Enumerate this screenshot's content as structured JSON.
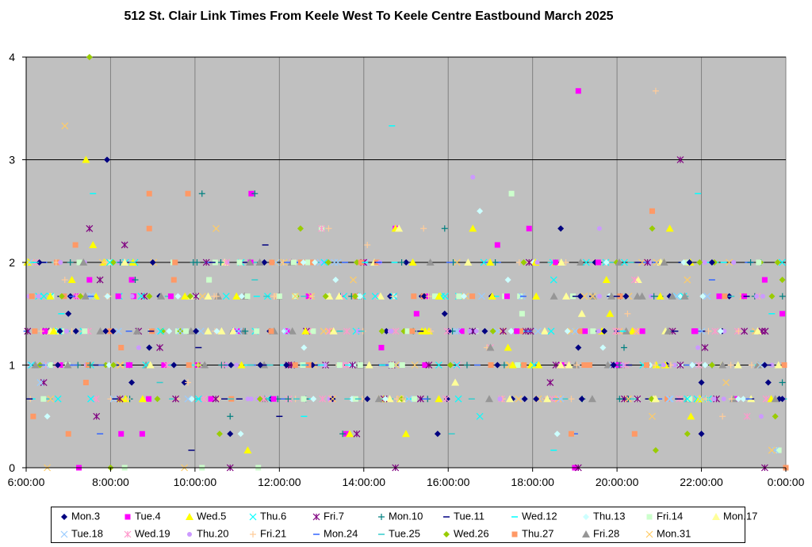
{
  "chart_data": {
    "type": "scatter",
    "title": "512 St. Clair Link Times From Keele West To Keele Centre Eastbound March 2025",
    "xlabel": "",
    "ylabel": "",
    "xlim": [
      "6:00:00",
      "0:00:00"
    ],
    "ylim": [
      0,
      4
    ],
    "x_ticks": [
      "6:00:00",
      "8:00:00",
      "10:00:00",
      "12:00:00",
      "14:00:00",
      "16:00:00",
      "18:00:00",
      "20:00:00",
      "22:00:00",
      "0:00:00"
    ],
    "y_ticks": [
      "0",
      "1",
      "2",
      "3",
      "4"
    ],
    "grid": true,
    "plot_background": "#c0c0c0",
    "legend_position": "bottom",
    "series": [
      {
        "name": "Mon.3",
        "marker": "diamond",
        "color": "#000080",
        "points": [
          [
            "7:55",
            3.0
          ],
          [
            "18:40",
            2.33
          ],
          [
            "9:00",
            2.0
          ],
          [
            "22:15",
            2.0
          ],
          [
            "7:00",
            1.5
          ],
          [
            "15:55",
            1.5
          ],
          [
            "8:55",
            1.17
          ],
          [
            "19:05",
            1.17
          ],
          [
            "6:45",
            1.0
          ],
          [
            "9:30",
            1.0
          ],
          [
            "12:10",
            1.0
          ],
          [
            "17:10",
            1.0
          ],
          [
            "19:55",
            1.0
          ],
          [
            "23:30",
            1.0
          ],
          [
            "8:30",
            0.83
          ],
          [
            "9:45",
            0.83
          ],
          [
            "22:00",
            0.83
          ],
          [
            "23:35",
            0.83
          ],
          [
            "14:05",
            0.67
          ],
          [
            "19:10",
            0.67
          ],
          [
            "23:55",
            0.67
          ],
          [
            "10:50",
            0.33
          ],
          [
            "15:45",
            0.33
          ],
          [
            "22:00",
            0.33
          ]
        ]
      },
      {
        "name": "Tue.4",
        "marker": "square",
        "color": "#ff00ff",
        "points": [
          [
            "19:05",
            3.67
          ],
          [
            "11:20",
            2.67
          ],
          [
            "14:45",
            2.33
          ],
          [
            "17:55",
            2.33
          ],
          [
            "17:10",
            2.17
          ],
          [
            "7:30",
            1.83
          ],
          [
            "8:30",
            1.83
          ],
          [
            "23:30",
            1.83
          ],
          [
            "15:15",
            1.5
          ],
          [
            "23:55",
            1.5
          ],
          [
            "14:25",
            1.17
          ],
          [
            "8:15",
            0.33
          ],
          [
            "8:45",
            0.33
          ],
          [
            "13:35",
            0.33
          ],
          [
            "7:15",
            0.0
          ],
          [
            "19:00",
            0.0
          ]
        ]
      },
      {
        "name": "Wed.5",
        "marker": "triangle",
        "color": "#ffff00",
        "points": [
          [
            "7:25",
            3.0
          ],
          [
            "7:35",
            2.17
          ],
          [
            "14:45",
            2.33
          ],
          [
            "16:35",
            2.33
          ],
          [
            "21:15",
            2.33
          ],
          [
            "7:05",
            1.83
          ],
          [
            "19:45",
            1.83
          ],
          [
            "19:50",
            1.5
          ],
          [
            "17:25",
            1.17
          ],
          [
            "13:40",
            0.33
          ],
          [
            "15:00",
            0.33
          ],
          [
            "21:45",
            0.5
          ],
          [
            "11:15",
            0.17
          ]
        ]
      },
      {
        "name": "Thu.6",
        "marker": "x",
        "color": "#00ffff",
        "points": [
          [
            "18:30",
            1.83
          ],
          [
            "16:45",
            0.5
          ],
          [
            "10:05",
            0.67
          ],
          [
            "21:40",
            0.67
          ]
        ]
      },
      {
        "name": "Fri.7",
        "marker": "asterisk",
        "color": "#800080",
        "points": [
          [
            "21:30",
            3.0
          ],
          [
            "7:30",
            2.33
          ],
          [
            "8:20",
            2.17
          ],
          [
            "7:45",
            1.83
          ],
          [
            "9:10",
            1.17
          ],
          [
            "22:05",
            1.17
          ],
          [
            "6:25",
            0.83
          ],
          [
            "18:25",
            0.83
          ],
          [
            "7:40",
            0.5
          ],
          [
            "13:50",
            0.33
          ],
          [
            "10:50",
            0.0
          ],
          [
            "14:45",
            0.0
          ],
          [
            "19:05",
            0.0
          ],
          [
            "23:30",
            0.0
          ]
        ]
      },
      {
        "name": "Mon.10",
        "marker": "plus",
        "color": "#008080",
        "points": [
          [
            "10:10",
            2.67
          ],
          [
            "11:25",
            2.67
          ],
          [
            "15:55",
            2.33
          ],
          [
            "8:35",
            1.83
          ],
          [
            "20:10",
            1.17
          ],
          [
            "10:50",
            0.5
          ],
          [
            "23:55",
            0.83
          ],
          [
            "13:30",
            0.33
          ]
        ]
      },
      {
        "name": "Tue.11",
        "marker": "dash",
        "color": "#000080",
        "points": [
          [
            "11:40",
            2.17
          ],
          [
            "10:05",
            1.17
          ],
          [
            "12:00",
            0.5
          ],
          [
            "9:55",
            0.17
          ]
        ]
      },
      {
        "name": "Wed.12",
        "marker": "dash",
        "color": "#00ffff",
        "points": [
          [
            "14:40",
            3.33
          ],
          [
            "7:35",
            2.67
          ],
          [
            "21:55",
            2.67
          ],
          [
            "6:50",
            1.5
          ],
          [
            "23:40",
            1.5
          ],
          [
            "12:35",
            0.5
          ],
          [
            "18:30",
            0.17
          ]
        ]
      },
      {
        "name": "Thu.13",
        "marker": "diamond",
        "color": "#ccffff",
        "points": [
          [
            "16:45",
            2.5
          ],
          [
            "13:20",
            1.83
          ],
          [
            "17:25",
            1.83
          ],
          [
            "12:35",
            1.17
          ],
          [
            "19:40",
            1.17
          ],
          [
            "11:05",
            0.33
          ],
          [
            "18:35",
            0.33
          ],
          [
            "6:30",
            0.5
          ]
        ]
      },
      {
        "name": "Fri.14",
        "marker": "square",
        "color": "#ccffcc",
        "points": [
          [
            "17:30",
            2.67
          ],
          [
            "13:00",
            2.33
          ],
          [
            "10:20",
            1.83
          ],
          [
            "12:00",
            1.67
          ],
          [
            "17:45",
            1.5
          ],
          [
            "8:20",
            0.0
          ],
          [
            "10:10",
            0.0
          ],
          [
            "11:30",
            0.0
          ],
          [
            "23:50",
            0.17
          ]
        ]
      },
      {
        "name": "Mon.17",
        "marker": "triangle",
        "color": "#ffff99",
        "points": [
          [
            "14:50",
            2.33
          ],
          [
            "20:30",
            1.83
          ],
          [
            "13:25",
            1.67
          ],
          [
            "19:10",
            1.5
          ],
          [
            "23:20",
            1.33
          ],
          [
            "18:40",
            1.0
          ],
          [
            "16:10",
            0.83
          ],
          [
            "20:55",
            0.67
          ]
        ]
      },
      {
        "name": "Tue.18",
        "marker": "x",
        "color": "#99ccff",
        "points": [
          [
            "18:40",
            0.67
          ],
          [
            "12:10",
            1.33
          ],
          [
            "23:45",
            0.17
          ],
          [
            "6:20",
            0.83
          ]
        ]
      },
      {
        "name": "Wed.19",
        "marker": "asterisk",
        "color": "#ff99cc",
        "points": [
          [
            "13:00",
            2.33
          ],
          [
            "20:25",
            1.83
          ],
          [
            "17:00",
            1.17
          ],
          [
            "23:05",
            0.5
          ]
        ]
      },
      {
        "name": "Thu.20",
        "marker": "circle",
        "color": "#cc99ff",
        "points": [
          [
            "16:35",
            2.83
          ],
          [
            "19:35",
            2.33
          ],
          [
            "8:40",
            1.17
          ],
          [
            "23:25",
            0.5
          ],
          [
            "11:20",
            0.67
          ],
          [
            "21:55",
            1.17
          ]
        ]
      },
      {
        "name": "Fri.21",
        "marker": "plus",
        "color": "#ffcc99",
        "points": [
          [
            "20:55",
            3.67
          ],
          [
            "13:10",
            2.33
          ],
          [
            "14:05",
            2.17
          ],
          [
            "15:25",
            2.33
          ],
          [
            "6:55",
            1.83
          ],
          [
            "20:15",
            1.5
          ],
          [
            "16:55",
            1.17
          ],
          [
            "22:30",
            0.5
          ],
          [
            "9:50",
            0.83
          ]
        ]
      },
      {
        "name": "Mon.24",
        "marker": "dash",
        "color": "#3366ff",
        "points": [
          [
            "22:15",
            1.83
          ],
          [
            "19:00",
            0.33
          ],
          [
            "7:45",
            0.33
          ]
        ]
      },
      {
        "name": "Tue.25",
        "marker": "dash",
        "color": "#33cccc",
        "points": [
          [
            "11:25",
            1.83
          ],
          [
            "16:05",
            0.33
          ],
          [
            "9:10",
            0.83
          ],
          [
            "12:35",
            1.0
          ]
        ]
      },
      {
        "name": "Wed.26",
        "marker": "diamond",
        "color": "#99cc00",
        "points": [
          [
            "7:30",
            4.0
          ],
          [
            "12:30",
            2.33
          ],
          [
            "20:50",
            2.33
          ],
          [
            "23:55",
            1.83
          ],
          [
            "22:15",
            1.0
          ],
          [
            "23:45",
            0.5
          ],
          [
            "20:55",
            0.17
          ],
          [
            "8:00",
            0.0
          ],
          [
            "10:35",
            0.33
          ],
          [
            "21:40",
            0.33
          ]
        ]
      },
      {
        "name": "Thu.27",
        "marker": "square",
        "color": "#ff9966",
        "points": [
          [
            "8:55",
            2.67
          ],
          [
            "9:50",
            2.67
          ],
          [
            "20:50",
            2.5
          ],
          [
            "8:55",
            2.33
          ],
          [
            "7:10",
            2.17
          ],
          [
            "9:30",
            1.83
          ],
          [
            "8:15",
            1.17
          ],
          [
            "18:55",
            0.33
          ],
          [
            "20:25",
            0.33
          ],
          [
            "6:10",
            0.5
          ],
          [
            "7:25",
            0.83
          ],
          [
            "0:00",
            0.0
          ],
          [
            "7:00",
            0.33
          ]
        ]
      },
      {
        "name": "Fri.28",
        "marker": "triangle",
        "color": "#969696",
        "points": [
          [
            "17:00",
            1.17
          ],
          [
            "23:45",
            0.67
          ]
        ]
      },
      {
        "name": "Mon.31",
        "marker": "x",
        "color": "#ffcc66",
        "points": [
          [
            "6:55",
            3.33
          ],
          [
            "10:30",
            2.33
          ],
          [
            "21:40",
            1.83
          ],
          [
            "13:45",
            1.83
          ],
          [
            "20:50",
            0.5
          ],
          [
            "22:35",
            0.83
          ],
          [
            "6:30",
            0.0
          ],
          [
            "23:40",
            0.17
          ],
          [
            "9:45",
            0.0
          ]
        ]
      }
    ],
    "dense_rows": {
      "description_note": "",
      "levels": [
        0.67,
        1.0,
        1.33,
        1.67,
        2.0
      ]
    }
  }
}
